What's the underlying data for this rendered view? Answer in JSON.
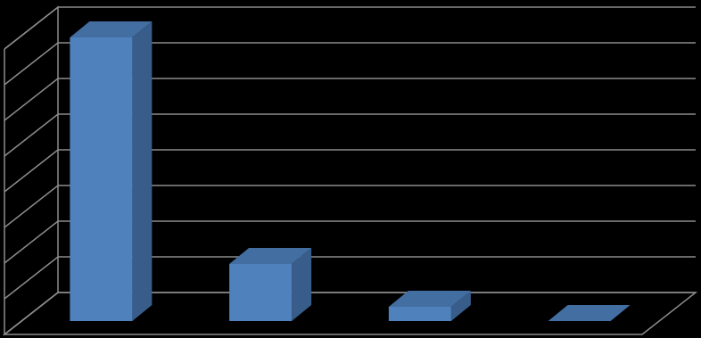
{
  "chart_data": {
    "type": "bar3d",
    "categories": [
      null,
      null,
      null,
      null
    ],
    "values": [
      7.95,
      1.6,
      0.4,
      0
    ],
    "color": "#4f81bd",
    "ylim": [
      0,
      8
    ],
    "yticks": [
      0,
      1,
      2,
      3,
      4,
      5,
      6,
      7,
      8
    ],
    "grid": true
  }
}
